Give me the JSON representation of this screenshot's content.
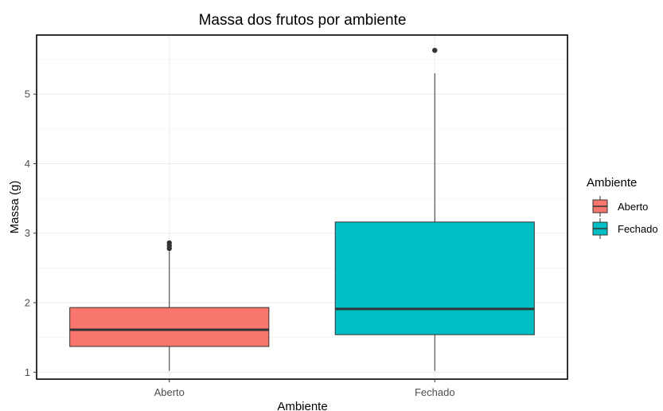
{
  "chart_data": {
    "type": "boxplot",
    "title": "Massa dos frutos por ambiente",
    "xlabel": "Ambiente",
    "ylabel": "Massa (g)",
    "categories": [
      "Aberto",
      "Fechado"
    ],
    "ylim": [
      0.9,
      5.85
    ],
    "yticks": [
      1,
      2,
      3,
      4,
      5
    ],
    "grid": true,
    "legend": {
      "title": "Ambiente",
      "placement": "right",
      "entries": [
        "Aberto",
        "Fechado"
      ]
    },
    "boxes": [
      {
        "name": "Aberto",
        "color": "#F8766D",
        "min": 1.02,
        "q1": 1.37,
        "median": 1.61,
        "q3": 1.93,
        "max": 2.74,
        "outliers": [
          2.78,
          2.82,
          2.86
        ]
      },
      {
        "name": "Fechado",
        "color": "#00BFC4",
        "min": 1.02,
        "q1": 1.54,
        "median": 1.91,
        "q3": 3.16,
        "max": 5.3,
        "outliers": [
          5.63
        ]
      }
    ]
  }
}
